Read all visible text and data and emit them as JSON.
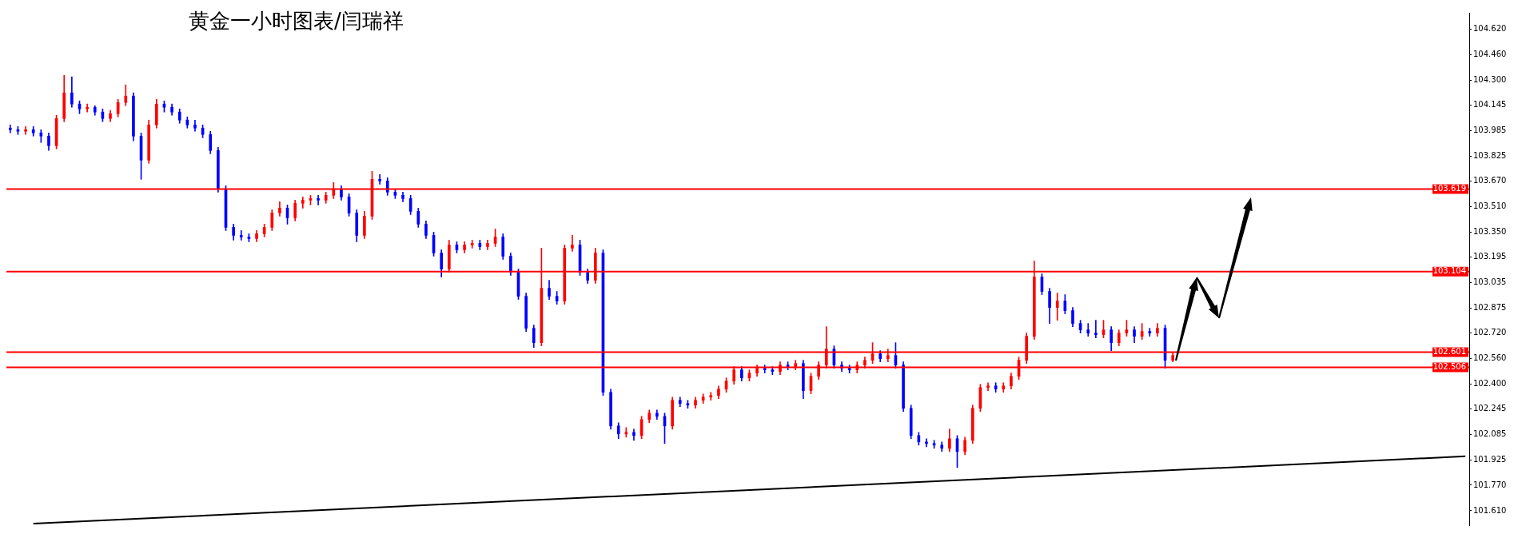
{
  "chart_data": {
    "type": "candlestick",
    "title": "黄金一小时图表/闫瑞祥",
    "categories": [
      null,
      null,
      null,
      null,
      null,
      null,
      null,
      null,
      null,
      null,
      null,
      null,
      null,
      null,
      null,
      null,
      null,
      null,
      null,
      null,
      null,
      null,
      null,
      null,
      null,
      null,
      null,
      null,
      null,
      null,
      null,
      null,
      null,
      null,
      null,
      null,
      null,
      null,
      null,
      null,
      null,
      null,
      null,
      null,
      null,
      null,
      null,
      null,
      null,
      null,
      null,
      null,
      null,
      null,
      null,
      null,
      null,
      null,
      null,
      null,
      null,
      null,
      null,
      null,
      null,
      null,
      null,
      null,
      null,
      null,
      null,
      null,
      null,
      null,
      null,
      null,
      null,
      null,
      null,
      null,
      null,
      null,
      null,
      null,
      null,
      null,
      null,
      null,
      null,
      null,
      null,
      null,
      null,
      null,
      null,
      null,
      null,
      null,
      null,
      null,
      null,
      null,
      null,
      null,
      null,
      null,
      null,
      null,
      null,
      null,
      null,
      null,
      null,
      null,
      null,
      null,
      null,
      null,
      null,
      null,
      null,
      null,
      null,
      null,
      null,
      null,
      null,
      null,
      null,
      null,
      null,
      null,
      null,
      null,
      null,
      null,
      null,
      null,
      null,
      null,
      null,
      null,
      null,
      null,
      null,
      null,
      null,
      null,
      null,
      null,
      null,
      null,
      null,
      null,
      null,
      null,
      null,
      null,
      null,
      null,
      null,
      null,
      null,
      null,
      null,
      null,
      null,
      null,
      null,
      null,
      null,
      null,
      null,
      null,
      null,
      null,
      null,
      null,
      null,
      null,
      null,
      null,
      null,
      null,
      null,
      null,
      null,
      null,
      null,
      null
    ],
    "ohlc": [
      [
        104.0,
        104.02,
        103.97,
        103.99
      ],
      [
        103.99,
        104.01,
        103.96,
        103.98
      ],
      [
        103.98,
        104.01,
        103.96,
        103.99
      ],
      [
        103.99,
        104.01,
        103.95,
        103.97
      ],
      [
        103.97,
        103.99,
        103.91,
        103.95
      ],
      [
        103.95,
        103.97,
        103.86,
        103.89
      ],
      [
        103.89,
        104.08,
        103.87,
        104.06
      ],
      [
        104.06,
        104.33,
        104.04,
        104.22
      ],
      [
        104.22,
        104.32,
        104.13,
        104.15
      ],
      [
        104.15,
        104.17,
        104.09,
        104.12
      ],
      [
        104.12,
        104.15,
        104.1,
        104.13
      ],
      [
        104.13,
        104.14,
        104.08,
        104.1
      ],
      [
        104.1,
        104.12,
        104.04,
        104.06
      ],
      [
        104.06,
        104.11,
        104.04,
        104.09
      ],
      [
        104.09,
        104.18,
        104.07,
        104.16
      ],
      [
        104.16,
        104.27,
        104.14,
        104.2
      ],
      [
        104.2,
        104.22,
        103.92,
        103.95
      ],
      [
        103.95,
        103.97,
        103.68,
        103.8
      ],
      [
        103.8,
        104.05,
        103.78,
        104.02
      ],
      [
        104.02,
        104.18,
        104.0,
        104.15
      ],
      [
        104.15,
        104.17,
        104.1,
        104.13
      ],
      [
        104.13,
        104.15,
        104.08,
        104.1
      ],
      [
        104.1,
        104.12,
        104.03,
        104.05
      ],
      [
        104.05,
        104.07,
        104.0,
        104.02
      ],
      [
        104.02,
        104.05,
        103.98,
        104.0
      ],
      [
        104.0,
        104.02,
        103.94,
        103.96
      ],
      [
        103.96,
        103.98,
        103.84,
        103.86
      ],
      [
        103.86,
        103.88,
        103.6,
        103.62
      ],
      [
        103.62,
        103.64,
        103.36,
        103.38
      ],
      [
        103.38,
        103.4,
        103.3,
        103.33
      ],
      [
        103.33,
        103.36,
        103.3,
        103.32
      ],
      [
        103.32,
        103.34,
        103.29,
        103.31
      ],
      [
        103.31,
        103.36,
        103.29,
        103.34
      ],
      [
        103.34,
        103.4,
        103.32,
        103.38
      ],
      [
        103.38,
        103.49,
        103.36,
        103.47
      ],
      [
        103.47,
        103.54,
        103.45,
        103.5
      ],
      [
        103.5,
        103.52,
        103.4,
        103.44
      ],
      [
        103.44,
        103.55,
        103.42,
        103.53
      ],
      [
        103.53,
        103.57,
        103.5,
        103.55
      ],
      [
        103.55,
        103.58,
        103.52,
        103.56
      ],
      [
        103.56,
        103.58,
        103.52,
        103.55
      ],
      [
        103.55,
        103.6,
        103.53,
        103.58
      ],
      [
        103.58,
        103.66,
        103.56,
        103.62
      ],
      [
        103.62,
        103.64,
        103.55,
        103.57
      ],
      [
        103.57,
        103.59,
        103.45,
        103.47
      ],
      [
        103.47,
        103.49,
        103.29,
        103.33
      ],
      [
        103.33,
        103.48,
        103.31,
        103.45
      ],
      [
        103.45,
        103.73,
        103.43,
        103.68
      ],
      [
        103.68,
        103.71,
        103.65,
        103.67
      ],
      [
        103.67,
        103.69,
        103.58,
        103.6
      ],
      [
        103.6,
        103.62,
        103.56,
        103.58
      ],
      [
        103.58,
        103.6,
        103.54,
        103.56
      ],
      [
        103.56,
        103.58,
        103.46,
        103.48
      ],
      [
        103.48,
        103.5,
        103.38,
        103.4
      ],
      [
        103.4,
        103.42,
        103.31,
        103.33
      ],
      [
        103.33,
        103.35,
        103.2,
        103.22
      ],
      [
        103.22,
        103.24,
        103.07,
        103.12
      ],
      [
        103.12,
        103.3,
        103.1,
        103.27
      ],
      [
        103.27,
        103.29,
        103.22,
        103.24
      ],
      [
        103.24,
        103.29,
        103.22,
        103.27
      ],
      [
        103.27,
        103.3,
        103.25,
        103.28
      ],
      [
        103.28,
        103.3,
        103.24,
        103.26
      ],
      [
        103.26,
        103.3,
        103.24,
        103.28
      ],
      [
        103.28,
        103.37,
        103.26,
        103.32
      ],
      [
        103.32,
        103.34,
        103.18,
        103.2
      ],
      [
        103.2,
        103.22,
        103.08,
        103.1
      ],
      [
        103.1,
        103.12,
        102.93,
        102.95
      ],
      [
        102.95,
        102.97,
        102.73,
        102.75
      ],
      [
        102.75,
        102.77,
        102.63,
        102.66
      ],
      [
        102.66,
        103.25,
        102.64,
        103.0
      ],
      [
        103.0,
        103.05,
        102.93,
        102.95
      ],
      [
        102.95,
        102.98,
        102.9,
        102.92
      ],
      [
        102.92,
        103.27,
        102.9,
        103.25
      ],
      [
        103.25,
        103.33,
        103.23,
        103.27
      ],
      [
        103.27,
        103.3,
        103.08,
        103.1
      ],
      [
        103.1,
        103.12,
        103.03,
        103.05
      ],
      [
        103.05,
        103.25,
        103.03,
        103.22
      ],
      [
        103.22,
        103.24,
        102.33,
        102.35
      ],
      [
        102.35,
        102.37,
        102.12,
        102.14
      ],
      [
        102.14,
        102.16,
        102.06,
        102.09
      ],
      [
        102.09,
        102.13,
        102.07,
        102.1
      ],
      [
        102.1,
        102.12,
        102.05,
        102.08
      ],
      [
        102.08,
        102.2,
        102.06,
        102.18
      ],
      [
        102.18,
        102.24,
        102.16,
        102.22
      ],
      [
        102.22,
        102.24,
        102.18,
        102.2
      ],
      [
        102.2,
        102.22,
        102.03,
        102.14
      ],
      [
        102.14,
        102.32,
        102.12,
        102.3
      ],
      [
        102.3,
        102.32,
        102.26,
        102.28
      ],
      [
        102.28,
        102.3,
        102.25,
        102.27
      ],
      [
        102.27,
        102.32,
        102.25,
        102.3
      ],
      [
        102.3,
        102.34,
        102.28,
        102.32
      ],
      [
        102.32,
        102.35,
        102.3,
        102.33
      ],
      [
        102.33,
        102.39,
        102.31,
        102.37
      ],
      [
        102.37,
        102.44,
        102.35,
        102.42
      ],
      [
        102.42,
        102.51,
        102.4,
        102.49
      ],
      [
        102.49,
        102.51,
        102.42,
        102.44
      ],
      [
        102.44,
        102.49,
        102.42,
        102.47
      ],
      [
        102.47,
        102.52,
        102.45,
        102.5
      ],
      [
        102.5,
        102.52,
        102.47,
        102.49
      ],
      [
        102.49,
        102.51,
        102.46,
        102.48
      ],
      [
        102.48,
        102.54,
        102.46,
        102.52
      ],
      [
        102.52,
        102.54,
        102.49,
        102.51
      ],
      [
        102.51,
        102.55,
        102.49,
        102.53
      ],
      [
        102.53,
        102.55,
        102.31,
        102.36
      ],
      [
        102.36,
        102.47,
        102.34,
        102.45
      ],
      [
        102.45,
        102.54,
        102.43,
        102.52
      ],
      [
        102.52,
        102.76,
        102.5,
        102.62
      ],
      [
        102.62,
        102.64,
        102.5,
        102.52
      ],
      [
        102.52,
        102.54,
        102.48,
        102.5
      ],
      [
        102.5,
        102.52,
        102.47,
        102.49
      ],
      [
        102.49,
        102.54,
        102.47,
        102.52
      ],
      [
        102.52,
        102.57,
        102.5,
        102.55
      ],
      [
        102.55,
        102.66,
        102.53,
        102.59
      ],
      [
        102.59,
        102.61,
        102.54,
        102.56
      ],
      [
        102.56,
        102.62,
        102.54,
        102.58
      ],
      [
        102.58,
        102.66,
        102.5,
        102.52
      ],
      [
        102.52,
        102.54,
        102.23,
        102.25
      ],
      [
        102.25,
        102.27,
        102.06,
        102.08
      ],
      [
        102.08,
        102.1,
        102.02,
        102.04
      ],
      [
        102.04,
        102.06,
        102.01,
        102.03
      ],
      [
        102.03,
        102.05,
        102.0,
        102.02
      ],
      [
        102.02,
        102.04,
        101.98,
        102.0
      ],
      [
        102.0,
        102.12,
        101.98,
        102.06
      ],
      [
        102.06,
        102.08,
        101.88,
        101.98
      ],
      [
        101.98,
        102.07,
        101.96,
        102.05
      ],
      [
        102.05,
        102.27,
        102.03,
        102.25
      ],
      [
        102.25,
        102.4,
        102.23,
        102.38
      ],
      [
        102.38,
        102.41,
        102.36,
        102.39
      ],
      [
        102.39,
        102.41,
        102.35,
        102.37
      ],
      [
        102.37,
        102.41,
        102.35,
        102.39
      ],
      [
        102.39,
        102.47,
        102.37,
        102.45
      ],
      [
        102.45,
        102.57,
        102.43,
        102.55
      ],
      [
        102.55,
        102.72,
        102.53,
        102.7
      ],
      [
        102.7,
        103.17,
        102.68,
        103.07
      ],
      [
        103.07,
        103.09,
        102.96,
        102.98
      ],
      [
        102.98,
        103.0,
        102.78,
        102.88
      ],
      [
        102.88,
        102.97,
        102.8,
        102.92
      ],
      [
        102.92,
        102.96,
        102.84,
        102.86
      ],
      [
        102.86,
        102.88,
        102.76,
        102.78
      ],
      [
        102.78,
        102.8,
        102.72,
        102.74
      ],
      [
        102.74,
        102.78,
        102.7,
        102.72
      ],
      [
        102.72,
        102.8,
        102.69,
        102.71
      ],
      [
        102.71,
        102.8,
        102.69,
        102.74
      ],
      [
        102.74,
        102.76,
        102.61,
        102.66
      ],
      [
        102.66,
        102.74,
        102.64,
        102.72
      ],
      [
        102.72,
        102.8,
        102.7,
        102.74
      ],
      [
        102.74,
        102.76,
        102.66,
        102.7
      ],
      [
        102.7,
        102.78,
        102.68,
        102.73
      ],
      [
        102.73,
        102.75,
        102.7,
        102.72
      ],
      [
        102.72,
        102.78,
        102.7,
        102.75
      ],
      [
        102.75,
        102.77,
        102.5,
        102.55
      ],
      [
        102.55,
        102.6,
        102.54,
        102.58
      ],
      null,
      null,
      null,
      null,
      null,
      null,
      null,
      null,
      null,
      null,
      null,
      null,
      null,
      null,
      null,
      null,
      null,
      null,
      null,
      null,
      null,
      null,
      null,
      null,
      null,
      null,
      null,
      null,
      null,
      null,
      null,
      null,
      null,
      null,
      null,
      null,
      null,
      null
    ],
    "series": [
      {
        "type": "line",
        "color": "#000000",
        "values": [
          null,
          null,
          null,
          101.53,
          null,
          null,
          null,
          null,
          null,
          null,
          null,
          null,
          null,
          null,
          null,
          null,
          null,
          null,
          null,
          null,
          null,
          null,
          null,
          null,
          null,
          null,
          null,
          null,
          null,
          null,
          null,
          null,
          null,
          null,
          null,
          null,
          null,
          null,
          null,
          null,
          null,
          null,
          null,
          null,
          null,
          null,
          null,
          null,
          null,
          null,
          null,
          null,
          null,
          null,
          null,
          null,
          null,
          null,
          null,
          null,
          null,
          null,
          null,
          null,
          null,
          null,
          null,
          null,
          null,
          null,
          null,
          null,
          null,
          null,
          null,
          null,
          null,
          null,
          null,
          null,
          null,
          null,
          null,
          null,
          null,
          null,
          null,
          null,
          null,
          null,
          null,
          null,
          null,
          null,
          null,
          null,
          null,
          null,
          null,
          null,
          null,
          null,
          null,
          null,
          null,
          null,
          null,
          null,
          null,
          null,
          null,
          null,
          null,
          null,
          null,
          null,
          null,
          null,
          null,
          null,
          null,
          null,
          null,
          null,
          null,
          null,
          null,
          null,
          null,
          null,
          null,
          null,
          null,
          null,
          null,
          null,
          null,
          null,
          null,
          null,
          null,
          null,
          null,
          null,
          null,
          null,
          null,
          null,
          null,
          null,
          null,
          null,
          null,
          null,
          null,
          null,
          null,
          null,
          null,
          null,
          null,
          null,
          null,
          null,
          null,
          null,
          null,
          null,
          null,
          null,
          null,
          null,
          null,
          null,
          null,
          null,
          null,
          null,
          null,
          null,
          null,
          null,
          null,
          null,
          null,
          null,
          null,
          null,
          null,
          101.95
        ]
      }
    ],
    "ylim": [
      101.52,
      104.72
    ],
    "yticks": [
      {
        "value": 101.61,
        "label": "101.610"
      },
      {
        "value": 101.77,
        "label": "101.770"
      },
      {
        "value": 101.925,
        "label": "101.925"
      },
      {
        "value": 102.085,
        "label": "102.085"
      },
      {
        "value": 102.245,
        "label": "102.245"
      },
      {
        "value": 102.4,
        "label": "102.400"
      },
      {
        "value": 102.56,
        "label": "102.560"
      },
      {
        "value": 102.72,
        "label": "102.720"
      },
      {
        "value": 102.875,
        "label": "102.875"
      },
      {
        "value": 103.035,
        "label": "103.035"
      },
      {
        "value": 103.195,
        "label": "103.195"
      },
      {
        "value": 103.35,
        "label": "103.350"
      },
      {
        "value": 103.51,
        "label": "103.510"
      },
      {
        "value": 103.67,
        "label": "103.670"
      },
      {
        "value": 103.825,
        "label": "103.825"
      },
      {
        "value": 103.985,
        "label": "103.985"
      },
      {
        "value": 104.145,
        "label": "104.145"
      },
      {
        "value": 104.3,
        "label": "104.300"
      },
      {
        "value": 104.46,
        "label": "104.460"
      },
      {
        "value": 104.62,
        "label": "104.620"
      }
    ],
    "ref_lines": [
      {
        "axis": "y",
        "value": 103.619,
        "label": "103.619",
        "color": "#ff0000"
      },
      {
        "axis": "y",
        "value": 103.104,
        "label": "103.104",
        "color": "#ff0000"
      },
      {
        "axis": "y",
        "value": 102.601,
        "label": "102.601",
        "color": "#ff0000"
      },
      {
        "axis": "y",
        "value": 102.506,
        "label": "102.506",
        "color": "#ff0000"
      }
    ],
    "grid": false,
    "legend": false,
    "tick_labels": "y"
  }
}
